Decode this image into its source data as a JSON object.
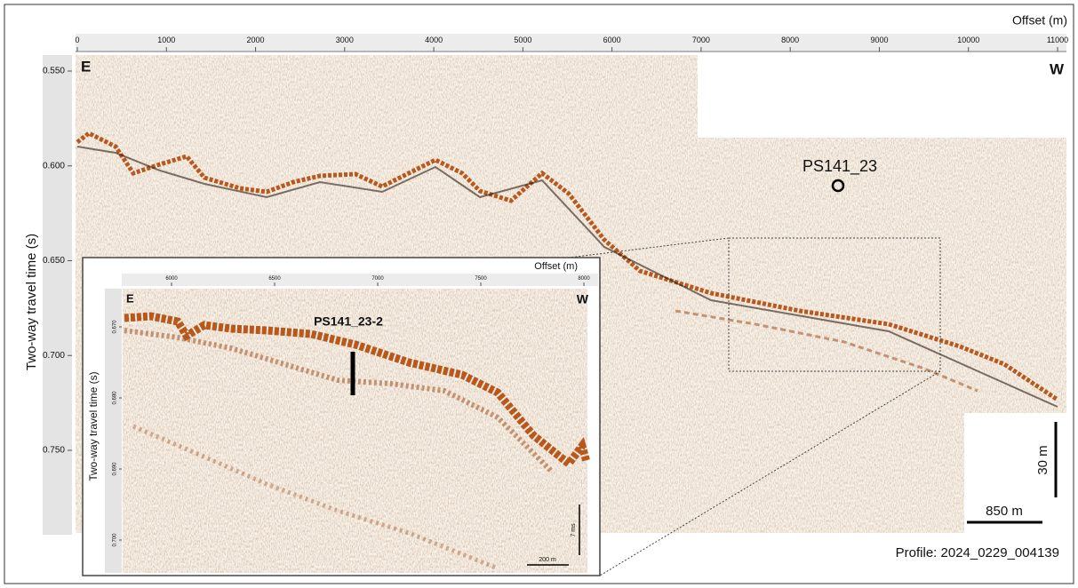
{
  "main": {
    "x_label": "Offset (m)",
    "y_label": "Two-way travel time (s)",
    "xticks": [
      0,
      1000,
      2000,
      3000,
      4000,
      5000,
      6000,
      7000,
      8000,
      9000,
      10000,
      11000
    ],
    "yticks": [
      {
        "value": 0.55,
        "label": "0.550"
      },
      {
        "value": 0.6,
        "label": "0.600"
      },
      {
        "value": 0.65,
        "label": "0.650"
      },
      {
        "value": 0.7,
        "label": "0.700"
      },
      {
        "value": 0.75,
        "label": "0.750"
      }
    ],
    "left_label": "E",
    "right_label": "W",
    "station": "PS141_23",
    "scale_vertical": "30 m",
    "scale_horizontal": "850 m",
    "profile": "Profile: 2024_0229_004139"
  },
  "inset": {
    "x_label": "Offset (m)",
    "y_label": "Two-way travel time (s)",
    "xticks": [
      6000,
      6500,
      7000,
      7500,
      8000
    ],
    "yticks": [
      {
        "value": 0.67,
        "label": "0.670"
      },
      {
        "value": 0.68,
        "label": "0.680"
      },
      {
        "value": 0.69,
        "label": "0.690"
      },
      {
        "value": 0.7,
        "label": "0.700"
      }
    ],
    "left_label": "E",
    "right_label": "W",
    "station": "PS141_23-2",
    "scale_vertical": "7 ms",
    "scale_horizontal": "200 m"
  }
}
